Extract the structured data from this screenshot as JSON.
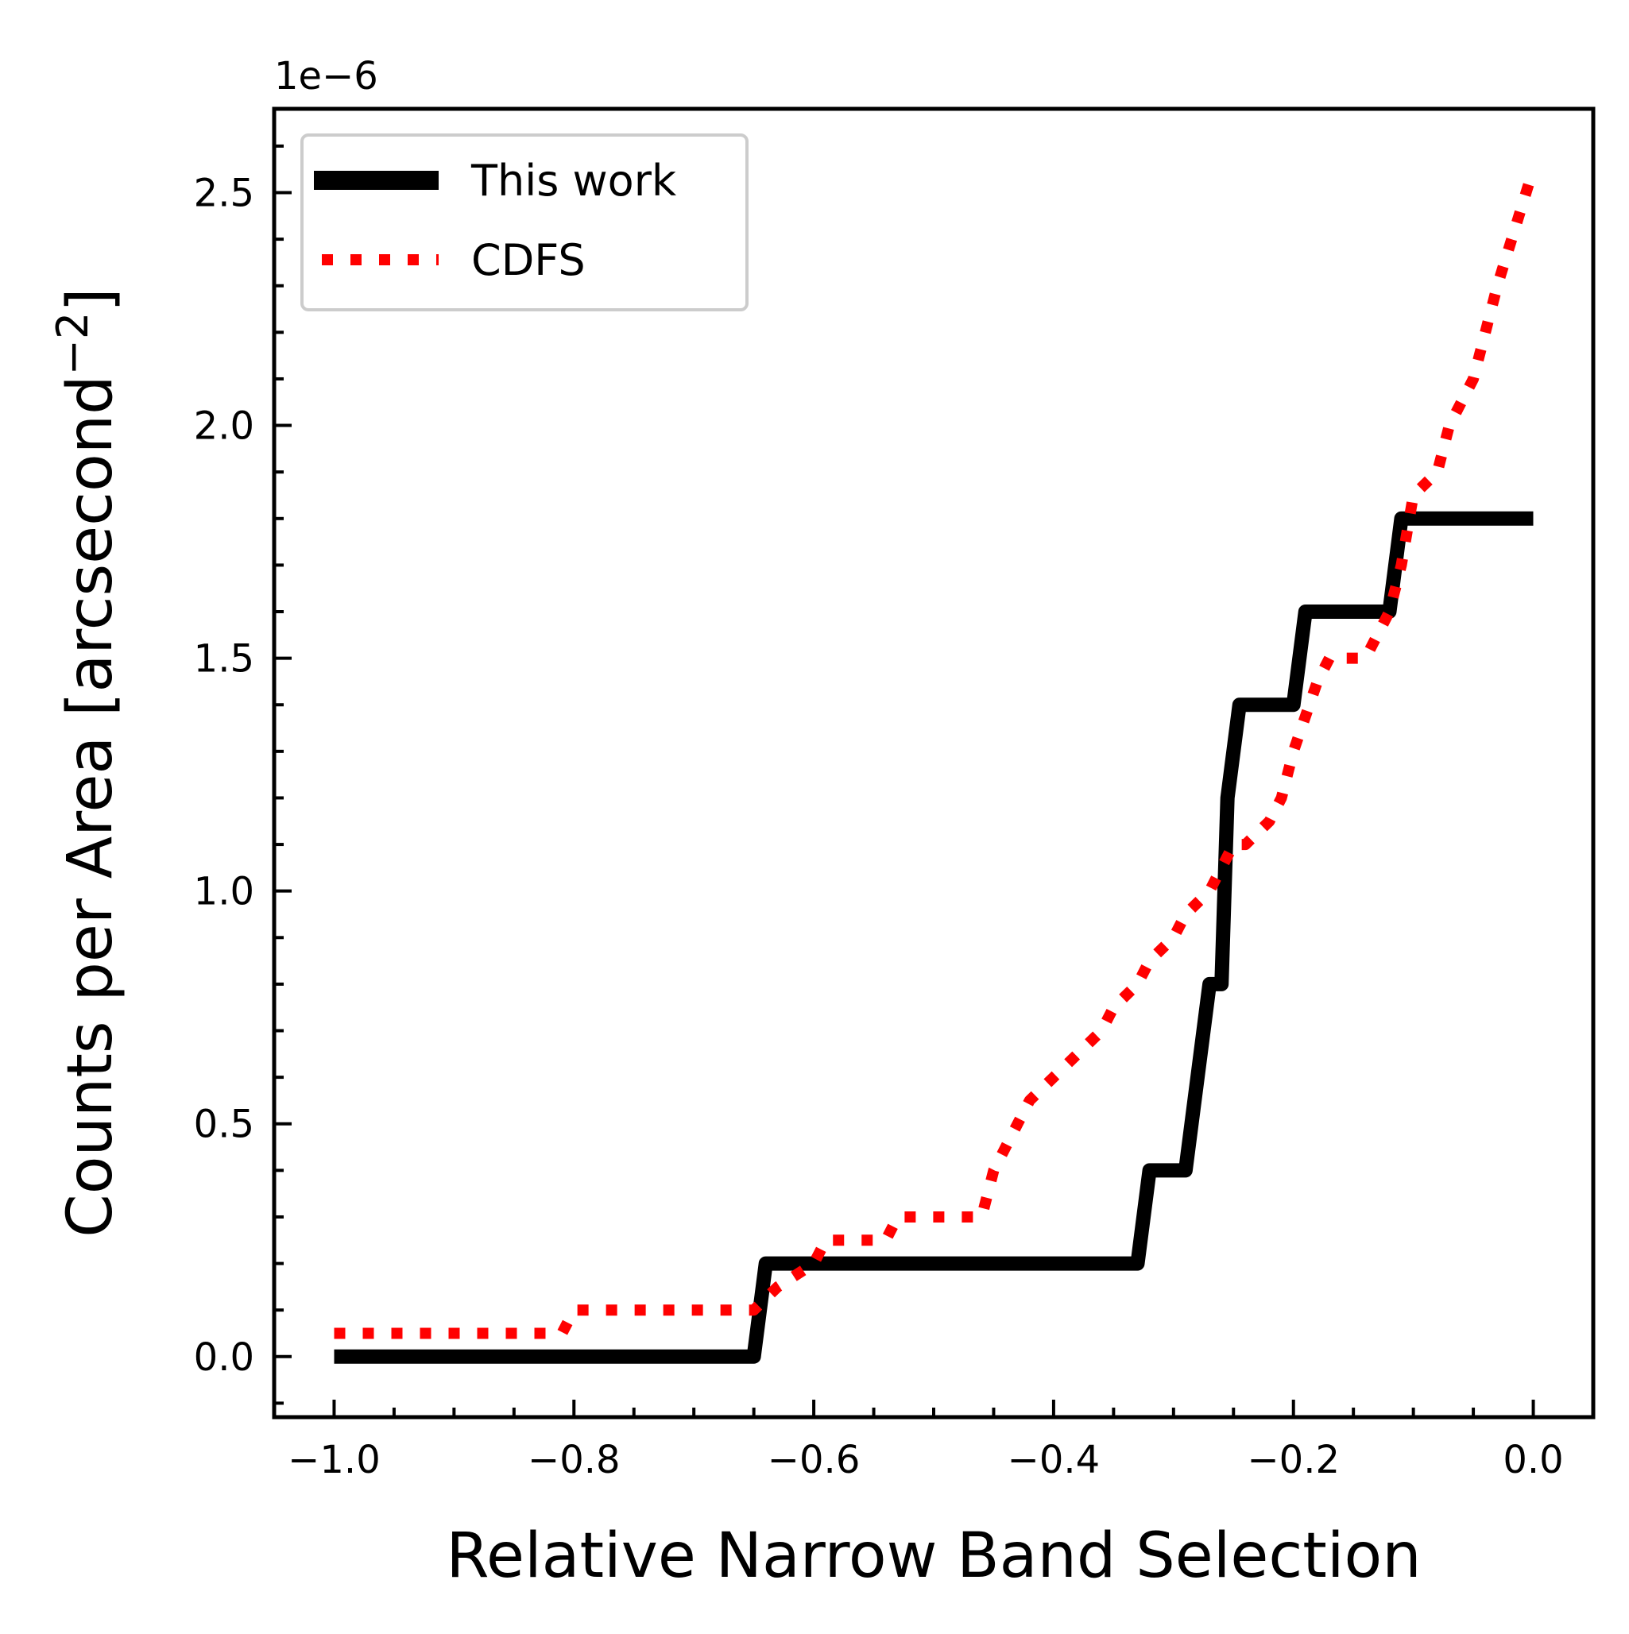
{
  "chart_data": {
    "type": "line",
    "title": "",
    "xlabel": "Relative Narrow Band Selection",
    "ylabel_text": "Counts per Area [arcsecond",
    "ylabel_exp": "−2",
    "ylabel_close": "]",
    "offset_text": "1e−6",
    "xlim": [
      -1.05,
      0.05
    ],
    "ylim": [
      -0.13,
      2.68
    ],
    "x_ticks": [
      -1.0,
      -0.8,
      -0.6,
      -0.4,
      -0.2,
      0.0
    ],
    "x_tick_labels": [
      "−1.0",
      "−0.8",
      "−0.6",
      "−0.4",
      "−0.2",
      "0.0"
    ],
    "y_ticks": [
      0.0,
      0.5,
      1.0,
      1.5,
      2.0,
      2.5
    ],
    "y_tick_labels": [
      "0.0",
      "0.5",
      "1.0",
      "1.5",
      "2.0",
      "2.5"
    ],
    "legend_position": "upper-left",
    "grid": false,
    "series": [
      {
        "name": "This work",
        "color": "#000000",
        "style": "solid",
        "x": [
          -1.0,
          -0.65,
          -0.64,
          -0.33,
          -0.32,
          -0.29,
          -0.28,
          -0.27,
          -0.26,
          -0.255,
          -0.245,
          -0.235,
          -0.2,
          -0.19,
          -0.12,
          -0.11,
          0.0
        ],
        "y": [
          0.0,
          0.0,
          0.2,
          0.2,
          0.4,
          0.4,
          0.6,
          0.8,
          0.8,
          1.2,
          1.4,
          1.4,
          1.4,
          1.6,
          1.6,
          1.8,
          1.8
        ]
      },
      {
        "name": "CDFS",
        "color": "#ff0000",
        "style": "dotted",
        "x": [
          -1.0,
          -0.81,
          -0.8,
          -0.65,
          -0.63,
          -0.6,
          -0.59,
          -0.54,
          -0.53,
          -0.46,
          -0.45,
          -0.43,
          -0.42,
          -0.4,
          -0.38,
          -0.36,
          -0.35,
          -0.33,
          -0.32,
          -0.3,
          -0.29,
          -0.27,
          -0.26,
          -0.25,
          -0.24,
          -0.22,
          -0.21,
          -0.2,
          -0.18,
          -0.17,
          -0.15,
          -0.14,
          -0.13,
          -0.12,
          -0.11,
          -0.1,
          -0.08,
          -0.07,
          -0.05,
          -0.03,
          0.0
        ],
        "y": [
          0.05,
          0.05,
          0.1,
          0.1,
          0.15,
          0.2,
          0.25,
          0.25,
          0.3,
          0.3,
          0.4,
          0.5,
          0.55,
          0.6,
          0.65,
          0.7,
          0.75,
          0.8,
          0.85,
          0.9,
          0.95,
          1.0,
          1.05,
          1.1,
          1.1,
          1.15,
          1.2,
          1.3,
          1.45,
          1.5,
          1.5,
          1.5,
          1.55,
          1.6,
          1.7,
          1.85,
          1.9,
          2.0,
          2.1,
          2.3,
          2.55
        ]
      }
    ]
  }
}
